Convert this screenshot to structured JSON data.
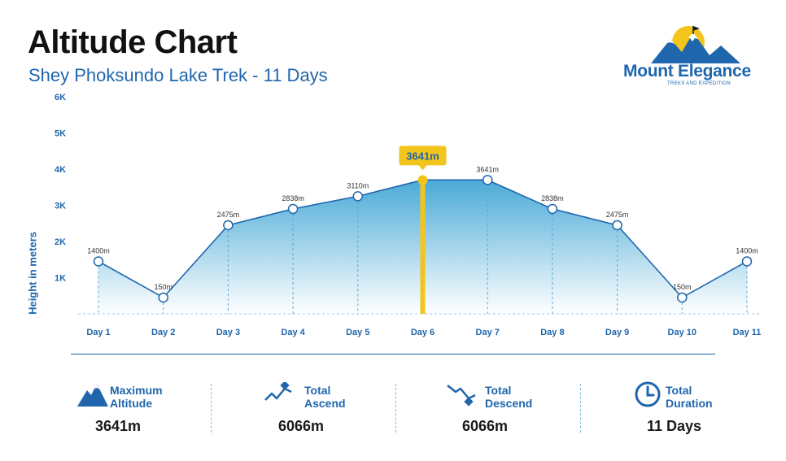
{
  "header": {
    "title": "Altitude Chart",
    "subtitle": "Shey Phoksundo Lake Trek - 11 Days"
  },
  "logo": {
    "name": "Mount Elegance",
    "tagline": "TREKS AND EXPEDITION"
  },
  "chart_data": {
    "type": "line",
    "title": "Altitude Chart",
    "subtitle": "Shey Phoksundo Lake Trek - 11 Days",
    "xlabel": "",
    "ylabel": "Height in meters",
    "categories": [
      "Day 1",
      "Day 2",
      "Day 3",
      "Day 4",
      "Day 5",
      "Day 6",
      "Day 7",
      "Day 8",
      "Day 9",
      "Day 10",
      "Day 11"
    ],
    "y_ticks": [
      "1K",
      "2K",
      "3K",
      "4K",
      "5K",
      "6K"
    ],
    "ylim": [
      0,
      6000
    ],
    "series": [
      {
        "values": [
          1400,
          150,
          2475,
          2838,
          3110,
          3641,
          3641,
          2838,
          2475,
          150,
          1400
        ],
        "labels": [
          "1400m",
          "150m",
          "2475m",
          "2838m",
          "3110m",
          "",
          "3641m",
          "2838m",
          "2475m",
          "150m",
          "1400m"
        ]
      }
    ],
    "point_y_offsets": [
      1450,
      450,
      2450,
      2900,
      3250,
      3700,
      3700,
      2900,
      2450,
      450,
      1450
    ],
    "highlight": {
      "index": 5,
      "label": "3641m"
    },
    "grid": false,
    "legend": "none",
    "colors": {
      "line": "#1f66ad",
      "fill": "#2a9bd0",
      "highlight": "#f3c51c",
      "text": "#1f66ad"
    }
  },
  "stats": [
    {
      "label_1": "Maximum",
      "label_2": "Altitude",
      "value": "3641m",
      "icon": "mountain-icon"
    },
    {
      "label_1": "Total",
      "label_2": "Ascend",
      "value": "6066m",
      "icon": "ascend-icon"
    },
    {
      "label_1": "Total",
      "label_2": "Descend",
      "value": "6066m",
      "icon": "descend-icon"
    },
    {
      "label_1": "Total",
      "label_2": "Duration",
      "value": "11 Days",
      "icon": "clock-icon"
    }
  ]
}
